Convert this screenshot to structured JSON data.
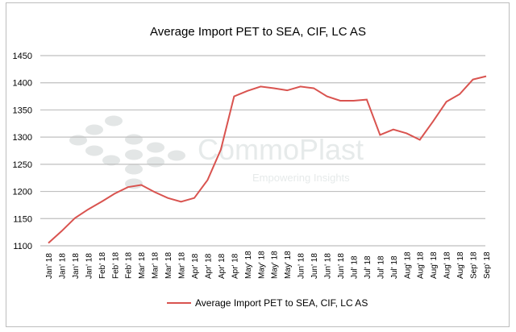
{
  "chart_data": {
    "type": "line",
    "title": "Average Import PET to SEA, CIF, LC AS",
    "xlabel": "",
    "ylabel": "",
    "ylim": [
      1100,
      1450
    ],
    "yticks": [
      1100,
      1150,
      1200,
      1250,
      1300,
      1350,
      1400,
      1450
    ],
    "grid": true,
    "legend_position": "bottom",
    "categories": [
      "Jan' 18",
      "Jan' 18",
      "Jan' 18",
      "Jan' 18",
      "Feb' 18",
      "Feb' 18",
      "Feb' 18",
      "Mar' 18",
      "Mar' 18",
      "Mar' 18",
      "Mar' 18",
      "Apr' 18",
      "Apr' 18",
      "Apr' 18",
      "Apr' 18",
      "May' 18",
      "May' 18",
      "May' 18",
      "May' 18",
      "Jun' 18",
      "Jun' 18",
      "Jun' 18",
      "Jun' 18",
      "Jul' 18",
      "Jul' 18",
      "Jul' 18",
      "Jul' 18",
      "Aug' 18",
      "Aug' 18",
      "Aug' 18",
      "Aug' 18",
      "Aug' 18",
      "Sep' 18",
      "Sep' 18"
    ],
    "series": [
      {
        "name": "Average Import PET to SEA, CIF, LC AS",
        "color": "#d9534f",
        "values": [
          1105,
          1127,
          1151,
          1167,
          1181,
          1196,
          1208,
          1212,
          1199,
          1188,
          1181,
          1188,
          1221,
          1277,
          1375,
          1385,
          1393,
          1390,
          1386,
          1393,
          1390,
          1375,
          1367,
          1367,
          1369,
          1304,
          1314,
          1307,
          1295,
          1329,
          1365,
          1379,
          1406,
          1412
        ]
      }
    ]
  },
  "watermark": {
    "brand": "CommoPlast",
    "tagline": "Empowering Insights"
  }
}
